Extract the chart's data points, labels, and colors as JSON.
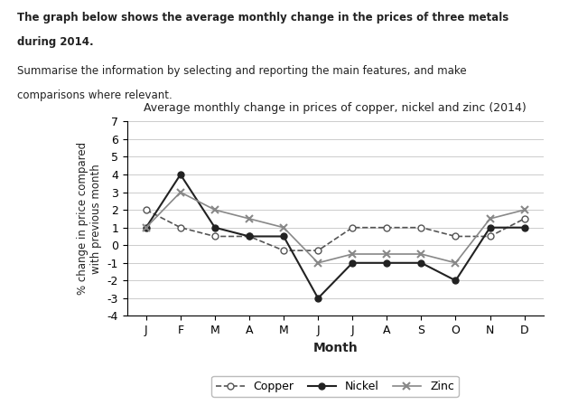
{
  "title": "Average monthly change in prices of copper, nickel and zinc (2014)",
  "xlabel": "Month",
  "ylabel": "% change in price compared\nwith previous month",
  "months": [
    "J",
    "F",
    "M",
    "A",
    "M",
    "J",
    "J",
    "A",
    "S",
    "O",
    "N",
    "D"
  ],
  "copper": [
    2,
    1,
    0.5,
    0.5,
    -0.3,
    -0.3,
    1,
    1,
    1,
    0.5,
    0.5,
    1.5
  ],
  "nickel": [
    1,
    4,
    1,
    0.5,
    0.5,
    -3,
    -1,
    -1,
    -1,
    -2,
    1,
    1
  ],
  "zinc": [
    1,
    3,
    2,
    1.5,
    1,
    -1,
    -0.5,
    -0.5,
    -0.5,
    -1,
    1.5,
    2
  ],
  "ylim": [
    -4,
    7
  ],
  "yticks": [
    -4,
    -3,
    -2,
    -1,
    0,
    1,
    2,
    3,
    4,
    5,
    6,
    7
  ],
  "background_color": "#ffffff",
  "text_color": "#222222",
  "header_text1": "The graph below shows the average monthly change in the prices of three metals",
  "header_text2": "during 2014.",
  "header_text3": "Summarise the information by selecting and reporting the main features, and make",
  "header_text4": "comparisons where relevant."
}
